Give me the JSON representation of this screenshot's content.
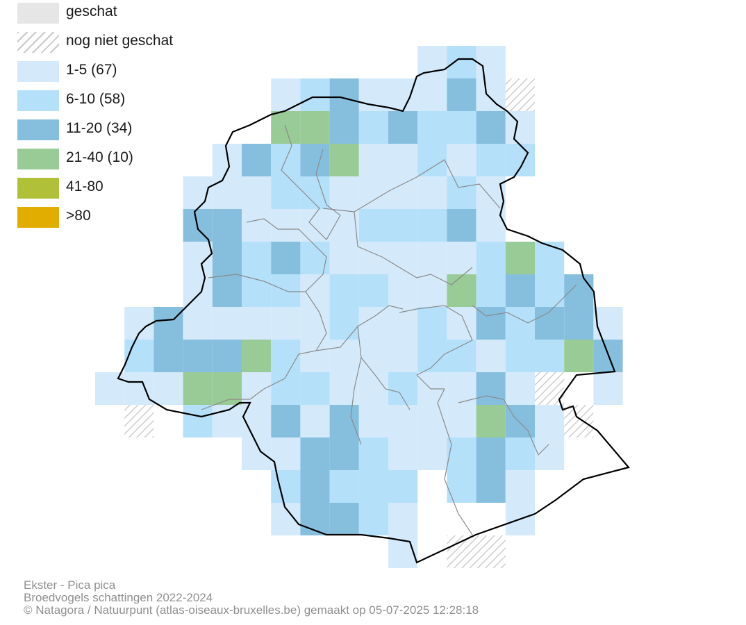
{
  "legend": {
    "items": [
      {
        "label": "geschat",
        "color": "#e6e6e6",
        "hatched": false
      },
      {
        "label": "nog niet geschat",
        "color": "#ffffff",
        "hatched": true
      },
      {
        "label": "1-5 (67)",
        "color": "#d4eafb",
        "hatched": false
      },
      {
        "label": "6-10 (58)",
        "color": "#b4e0fa",
        "hatched": false
      },
      {
        "label": "11-20 (34)",
        "color": "#86bfde",
        "hatched": false
      },
      {
        "label": "21-40 (10)",
        "color": "#99cb96",
        "hatched": false
      },
      {
        "label": "41-80",
        "color": "#b0c139",
        "hatched": false
      },
      {
        "label": ">80",
        "color": "#e0ad00",
        "hatched": false
      }
    ]
  },
  "footer": {
    "species": "Ekster - Pica pica",
    "subtitle": "Broedvogels schattingen 2022-2024",
    "credit": "© Natagora / Natuurpunt (atlas-oiseaux-bruxelles.be) gemaakt op 05-07-2025 12:28:18"
  }
}
